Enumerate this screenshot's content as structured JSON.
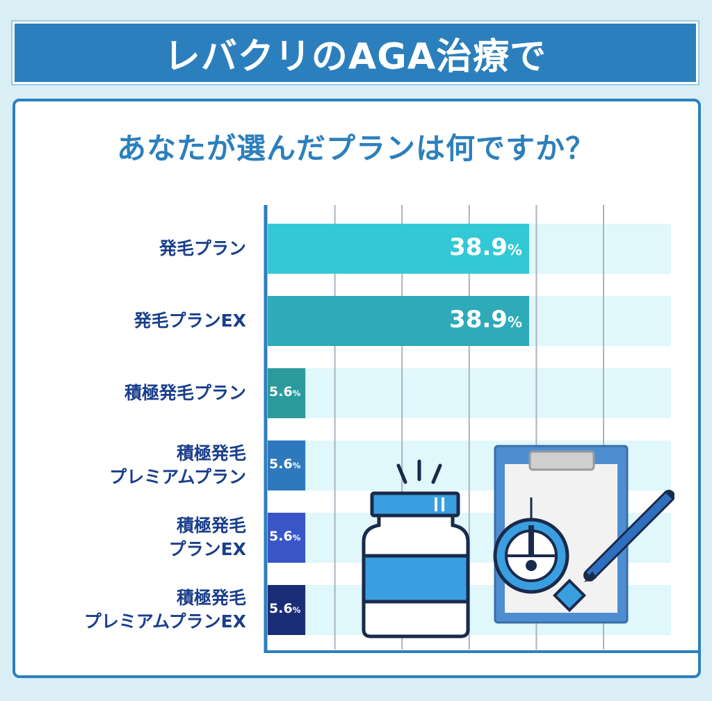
{
  "header": {
    "title": "レバクリのAGA治療で"
  },
  "question": "あなたが選んだプランは何ですか？",
  "colors": {
    "accent": "#2c7fbd",
    "track": "#e0f7fb",
    "label": "#1a3e8c"
  },
  "chart_data": {
    "type": "bar",
    "orientation": "horizontal",
    "unit": "%",
    "categories": [
      [
        "発毛プラン"
      ],
      [
        "発毛プランEX"
      ],
      [
        "積極発毛プラン"
      ],
      [
        "積極発毛",
        "プレミアムプラン"
      ],
      [
        "積極発毛",
        "プランEX"
      ],
      [
        "積極発毛",
        "プレミアムプランEX"
      ]
    ],
    "values": [
      38.9,
      38.9,
      5.6,
      5.6,
      5.6,
      5.6
    ],
    "value_labels": [
      "38.9",
      "38.9",
      "5.6",
      "5.6",
      "5.6",
      "5.6"
    ],
    "bar_colors": [
      "#33c8d6",
      "#2eaab8",
      "#2a9a9c",
      "#2e78bd",
      "#3a55c8",
      "#1c2d78"
    ],
    "xlim": [
      0,
      60
    ],
    "grid": true
  }
}
